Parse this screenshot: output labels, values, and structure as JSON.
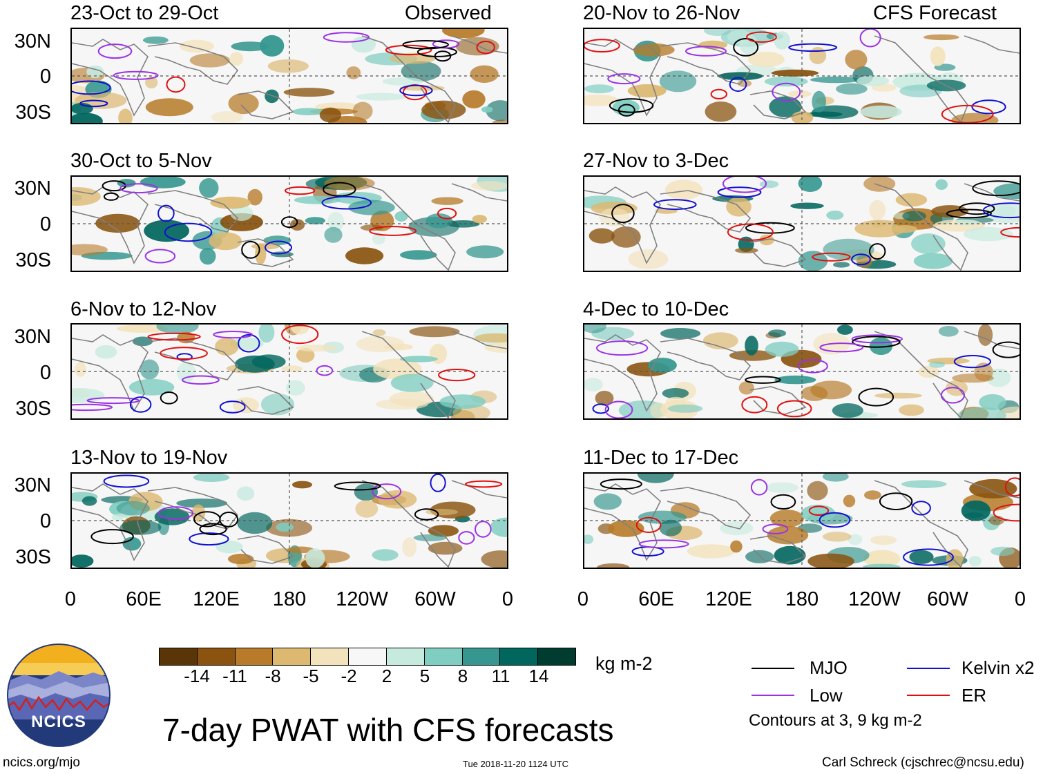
{
  "observed_label": "Observed",
  "forecast_label": "CFS Forecast",
  "left_panels": [
    {
      "title": "23-Oct to 29-Oct"
    },
    {
      "title": "30-Oct to 5-Nov"
    },
    {
      "title": "6-Nov to 12-Nov"
    },
    {
      "title": "13-Nov to 19-Nov"
    }
  ],
  "right_panels": [
    {
      "title": "20-Nov to 26-Nov"
    },
    {
      "title": "27-Nov to 3-Dec"
    },
    {
      "title": "4-Dec to 10-Dec"
    },
    {
      "title": "11-Dec to 17-Dec"
    }
  ],
  "chart_data": {
    "type": "heatmap",
    "title": "7-day PWAT with CFS forecasts",
    "variable": "Precipitable water anomaly",
    "units": "kg m-2",
    "y_ticks": [
      "30N",
      "0",
      "30S"
    ],
    "x_ticks": [
      "0",
      "60E",
      "120E",
      "180",
      "120W",
      "60W",
      "0"
    ],
    "colorbar": {
      "labels": [
        "-14",
        "-11",
        "-8",
        "-5",
        "-2",
        "2",
        "5",
        "8",
        "11",
        "14"
      ],
      "colors": [
        "#5a3508",
        "#8a5410",
        "#b77b2a",
        "#dcb871",
        "#f3e3bd",
        "#f7f7f7",
        "#c7eadf",
        "#80cdc1",
        "#35978f",
        "#01665e",
        "#003c30"
      ]
    },
    "legend": [
      {
        "name": "MJO",
        "color": "#000000"
      },
      {
        "name": "Kelvin x2",
        "color": "#1010d0"
      },
      {
        "name": "Low",
        "color": "#9a32e6"
      },
      {
        "name": "ER",
        "color": "#e01010"
      }
    ],
    "contour_note": "Contours at 3, 9 kg m-2"
  },
  "footer": {
    "site": "ncics.org/mjo",
    "timestamp": "Tue 2018-11-20 1124 UTC",
    "author": "Carl Schreck (cjschrec@ncsu.edu)"
  },
  "logo_text": "NCICS"
}
